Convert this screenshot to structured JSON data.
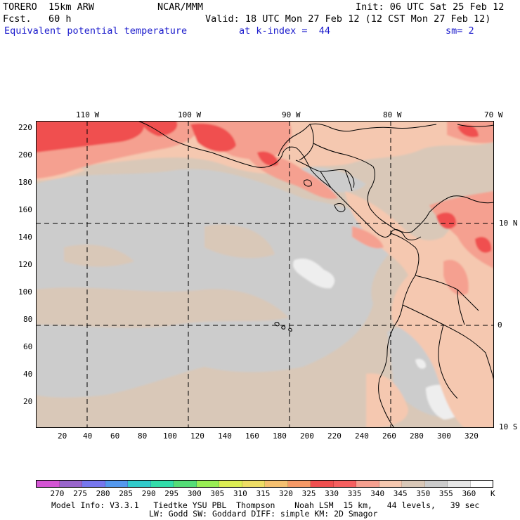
{
  "header": {
    "model": "TORERO  15km ARW",
    "center": "NCAR/MMM",
    "init": "Init: 06 UTC Sat 25 Feb 12",
    "fcst": "Fcst.   60 h",
    "valid": "Valid: 18 UTC Mon 27 Feb 12 (12 CST Mon 27 Feb 12)",
    "field": "Equivalent potential temperature",
    "level": "at k-index =  44",
    "smooth": "sm= 2"
  },
  "map": {
    "lon_labels": [
      "110 W",
      "100 W",
      "90 W",
      "80 W",
      "70 W"
    ],
    "lat_labels": [
      "10 N",
      "0",
      "10 S"
    ],
    "y_ticks": [
      "220",
      "200",
      "180",
      "160",
      "140",
      "120",
      "100",
      "80",
      "60",
      "40",
      "20"
    ],
    "x_ticks": [
      "20",
      "40",
      "60",
      "80",
      "100",
      "120",
      "140",
      "160",
      "180",
      "200",
      "220",
      "240",
      "260",
      "280",
      "300",
      "320"
    ]
  },
  "legend": {
    "colors": [
      "#d455d4",
      "#9966cc",
      "#7777ee",
      "#5599ee",
      "#33cccc",
      "#33ddaa",
      "#55dd77",
      "#99ee55",
      "#ddee55",
      "#eedd66",
      "#f5c070",
      "#f59966",
      "#f05050",
      "#f56060",
      "#f5a090",
      "#f5c8b0",
      "#d9c8b8",
      "#cccccc",
      "#e6e6e6",
      "#ffffff"
    ],
    "labels": [
      "270",
      "275",
      "280",
      "285",
      "290",
      "295",
      "300",
      "305",
      "310",
      "315",
      "320",
      "325",
      "330",
      "335",
      "340",
      "345",
      "350",
      "355",
      "360"
    ],
    "unit": "K"
  },
  "footer": {
    "line1": "Model Info: V3.3.1   Tiedtke YSU PBL  Thompson    Noah LSM  15 km,   44 levels,   39 sec",
    "line2": "LW: Godd SW: Goddard DIFF: simple KM: 2D Smagor"
  }
}
